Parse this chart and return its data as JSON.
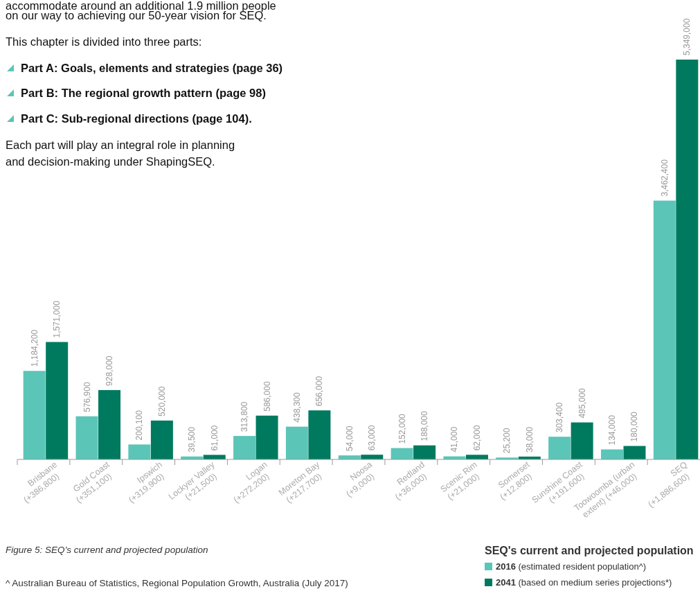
{
  "chart_data": {
    "type": "bar",
    "categories": [
      "Brisbane\n(+386,800)",
      "Gold Coast\n(+351,100)",
      "Ipswich\n(+319,900)",
      "Lockyer Valley\n(+21,500)",
      "Logan\n(+272,200)",
      "Moreton Bay\n(+217,700)",
      "Noosa\n(+9,000)",
      "Redland\n(+36,000)",
      "Scenic Rim\n(+21,000)",
      "Somerset\n(+12,800)",
      "Sunshine Coast\n(+191,600)",
      "Toowoomba (urban\nextent) (+46,000)",
      "SEQ\n(+1,886,600)"
    ],
    "series": [
      {
        "name": "2016 (estimated resident population^)",
        "color": "#5bc5b8",
        "values": [
          1184200,
          576900,
          200100,
          39500,
          313800,
          438300,
          54000,
          152000,
          41000,
          25200,
          303400,
          134000,
          3462400
        ],
        "value_labels": [
          "1,184,200",
          "576,900",
          "200,100",
          "39,500",
          "313,800",
          "438,300",
          "54,000",
          "152,000",
          "41,000",
          "25,200",
          "303,400",
          "134,000",
          "3,462,400"
        ]
      },
      {
        "name": "2041 (based on medium series projections*)",
        "color": "#007a5e",
        "values": [
          1571000,
          928000,
          520000,
          61000,
          586000,
          656000,
          63000,
          188000,
          62000,
          38000,
          495000,
          180000,
          5349000
        ],
        "value_labels": [
          "1,571,000",
          "928,000",
          "520,000",
          "61,000",
          "586,000",
          "656,000",
          "63,000",
          "188,000",
          "62,000",
          "38,000",
          "495,000",
          "180,000",
          "5,349,000"
        ]
      }
    ],
    "legend": "bottom right",
    "legend_title": "SEQ's current and projected population",
    "annotations": [
      "accommodate around an additional 1.9 million people",
      "on our way to achieving our 50-year vision for SEQ.",
      "This chapter is divided into three parts:",
      "Part A: Goals, elements and strategies (page 36)",
      "Part B: The regional growth pattern (page 98)",
      "Part C: Sub-regional directions (page 104).",
      "Each part will play an integral role in planning",
      "and decision-making under ShapingSEQ.",
      "Figure 5: SEQ’s current and projected population",
      "^ Australian Bureau of Statistics, Regional Population Growth, Australia (July 2017)"
    ]
  }
}
